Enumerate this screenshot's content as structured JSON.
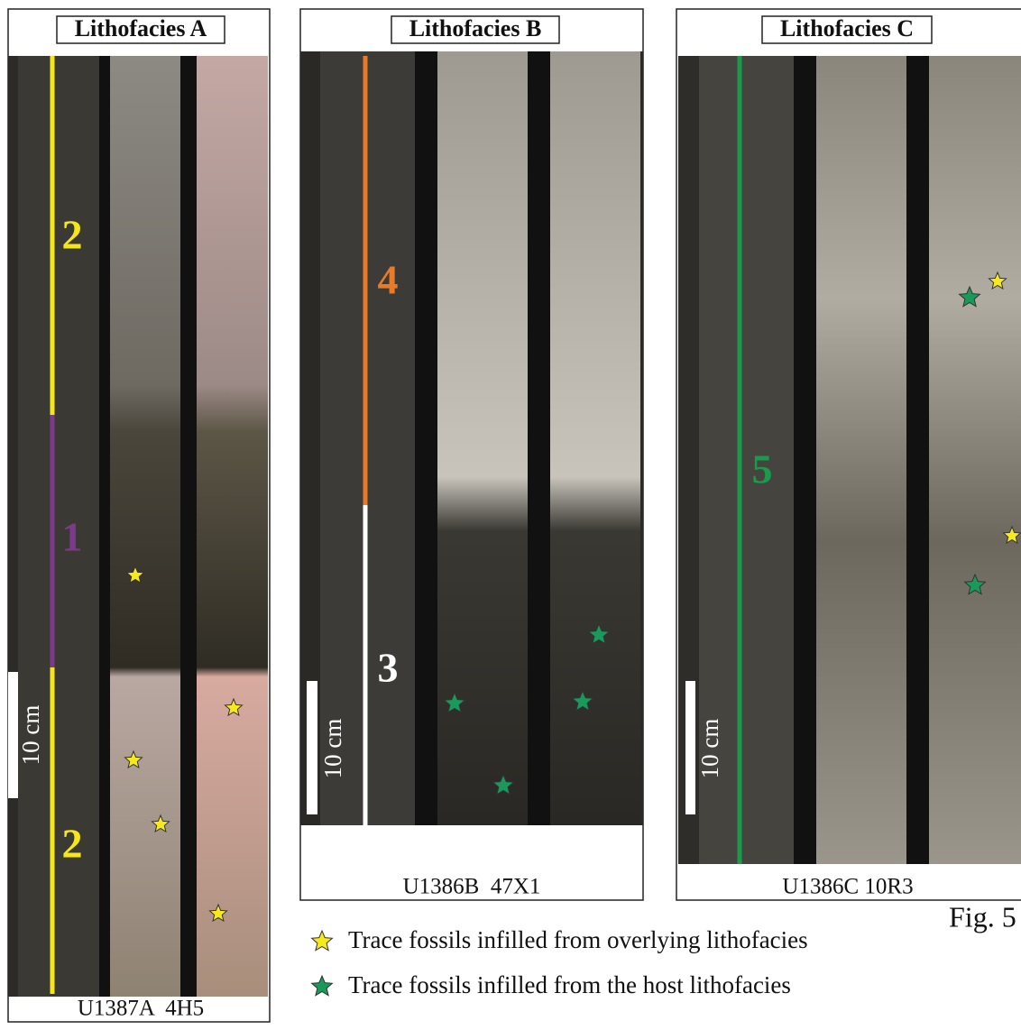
{
  "panels": [
    {
      "title": "Lithofacies A",
      "core": "U1387A  4H5",
      "scale": "10 cm",
      "units": [
        "2",
        "1",
        "2"
      ]
    },
    {
      "title": "Lithofacies B",
      "core": "U1386B  47X1",
      "scale": "10 cm",
      "units": [
        "4",
        "3"
      ]
    },
    {
      "title": "Lithofacies C",
      "core": "U1386C 10R3",
      "scale": "10 cm",
      "units": [
        "5"
      ]
    }
  ],
  "legend": [
    "Trace fossils infilled from overlying lithofacies",
    "Trace fossils infilled from the host lithofacies"
  ],
  "figure_label": "Fig. 5"
}
